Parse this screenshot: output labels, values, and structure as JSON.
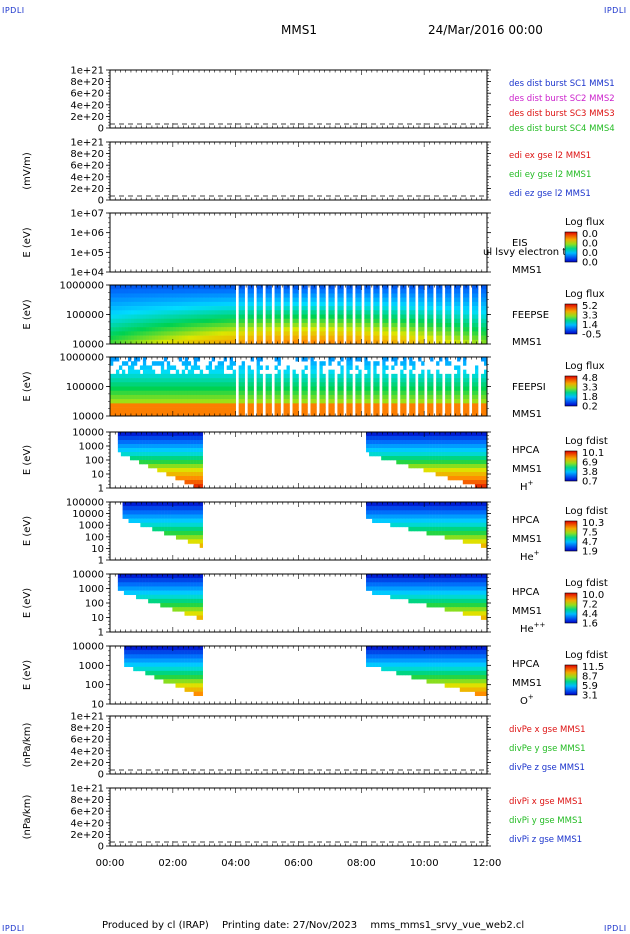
{
  "header": {
    "corner_tl": "IPDLI",
    "corner_tr": "IPDLI",
    "corner_bl": "IPDLI",
    "corner_br": "IPDLI",
    "spacecraft": "MMS1",
    "datetime": "24/Mar/2016 00:00"
  },
  "footer": {
    "produced_by": "Produced by cl (IRAP)",
    "printing_date": "Printing date: 27/Nov/2023",
    "script_name": "mms_mms1_srvy_vue_web2.cl"
  },
  "colors": {
    "blue": "#1a33cc",
    "magenta": "#cc22cc",
    "red": "#dd1111",
    "green": "#22bb22"
  },
  "chart_data": [
    {
      "type": "line",
      "id": "des",
      "ylabel": "",
      "yticks": [
        "1e+21",
        "8e+20",
        "6e+20",
        "4e+20",
        "2e+20",
        "0"
      ],
      "ylim": [
        0,
        1e+21
      ],
      "legend": [
        {
          "label": "des dist burst SC1 MMS1",
          "color": "#1a33cc"
        },
        {
          "label": "des dist burst SC2 MMS2",
          "color": "#cc22cc"
        },
        {
          "label": "des dist burst SC3 MMS3",
          "color": "#dd1111"
        },
        {
          "label": "des dist burst SC4 MMS4",
          "color": "#22bb22"
        }
      ],
      "series": [],
      "zero_line": "dashed"
    },
    {
      "type": "line",
      "id": "edi",
      "ylabel": "(mV/m)",
      "yticks": [
        "1e+21",
        "8e+20",
        "6e+20",
        "4e+20",
        "2e+20",
        "0"
      ],
      "ylim": [
        0,
        1e+21
      ],
      "legend": [
        {
          "label": "edi ex gse l2 MMS1",
          "color": "#dd1111"
        },
        {
          "label": "edi ey gse l2 MMS1",
          "color": "#22bb22"
        },
        {
          "label": "edi ez gse l2 MMS1",
          "color": "#1a33cc"
        }
      ],
      "series": [],
      "zero_line": "dashed"
    },
    {
      "type": "heatmap",
      "id": "eis",
      "ylabel": "E (eV)",
      "yticks": [
        "1e+07",
        "1e+06",
        "1e+05",
        "1e+04"
      ],
      "ylim": [
        10000,
        10000000
      ],
      "scale": "log",
      "labels": [
        "EIS",
        "MMS1"
      ],
      "overlay_text": "ul lsvy electron to",
      "colorbar": {
        "title": "Log flux",
        "ticks": [
          "0.0",
          "0.0",
          "0.0",
          "0.0"
        ]
      },
      "coverage": []
    },
    {
      "type": "heatmap",
      "id": "feepse",
      "ylabel": "E (eV)",
      "yticks": [
        "1000000",
        "100000",
        "10000"
      ],
      "ylim": [
        10000,
        1000000
      ],
      "scale": "log",
      "labels": [
        "FEEPSE",
        "MMS1"
      ],
      "colorbar": {
        "title": "Log flux",
        "ticks": [
          "5.2",
          "3.3",
          "1.4",
          "-0.5"
        ]
      },
      "coverage": [
        [
          0.0,
          12.0
        ]
      ]
    },
    {
      "type": "heatmap",
      "id": "feepsi",
      "ylabel": "E (eV)",
      "yticks": [
        "1000000",
        "100000",
        "10000"
      ],
      "ylim": [
        10000,
        1000000
      ],
      "scale": "log",
      "labels": [
        "FEEPSI",
        "MMS1"
      ],
      "colorbar": {
        "title": "Log flux",
        "ticks": [
          "4.8",
          "3.3",
          "1.8",
          "0.2"
        ]
      },
      "coverage": [
        [
          0.0,
          12.0
        ]
      ]
    },
    {
      "type": "heatmap",
      "id": "hpca-h",
      "ylabel": "E (eV)",
      "yticks": [
        "10000",
        "1000",
        "100",
        "10",
        "1"
      ],
      "ylim": [
        1,
        40000
      ],
      "scale": "log",
      "labels": [
        "HPCA",
        "MMS1"
      ],
      "species": "H",
      "species_sup": "+",
      "colorbar": {
        "title": "Log fdist",
        "ticks": [
          "10.1",
          "6.9",
          "3.8",
          "0.7"
        ]
      },
      "coverage": [
        [
          0.25,
          2.95
        ],
        [
          8.15,
          12.0
        ]
      ]
    },
    {
      "type": "heatmap",
      "id": "hpca-he",
      "ylabel": "E (eV)",
      "yticks": [
        "100000",
        "10000",
        "1000",
        "100",
        "10",
        "1"
      ],
      "ylim": [
        1,
        100000
      ],
      "scale": "log",
      "labels": [
        "HPCA",
        "MMS1"
      ],
      "species": "He",
      "species_sup": "+",
      "colorbar": {
        "title": "Log fdist",
        "ticks": [
          "10.3",
          "7.5",
          "4.7",
          "1.9"
        ]
      },
      "coverage": [
        [
          0.4,
          2.95
        ],
        [
          8.15,
          12.0
        ]
      ]
    },
    {
      "type": "heatmap",
      "id": "hpca-he2",
      "ylabel": "E (eV)",
      "yticks": [
        "10000",
        "1000",
        "100",
        "10",
        "1"
      ],
      "ylim": [
        1,
        40000
      ],
      "scale": "log",
      "labels": [
        "HPCA",
        "MMS1"
      ],
      "species": "He",
      "species_sup": "++",
      "colorbar": {
        "title": "Log fdist",
        "ticks": [
          "10.0",
          "7.2",
          "4.4",
          "1.6"
        ]
      },
      "coverage": [
        [
          0.25,
          2.95
        ],
        [
          8.15,
          12.0
        ]
      ]
    },
    {
      "type": "heatmap",
      "id": "hpca-o",
      "ylabel": "E (eV)",
      "yticks": [
        "10000",
        "1000",
        "100",
        "10"
      ],
      "ylim": [
        3,
        40000
      ],
      "scale": "log",
      "labels": [
        "HPCA",
        "MMS1"
      ],
      "species": "O",
      "species_sup": "+",
      "colorbar": {
        "title": "Log fdist",
        "ticks": [
          "11.5",
          "8.7",
          "5.9",
          "3.1"
        ]
      },
      "coverage": [
        [
          0.45,
          2.95
        ],
        [
          8.15,
          12.0
        ]
      ]
    },
    {
      "type": "line",
      "id": "divpe",
      "ylabel": "(nPa/km)",
      "yticks": [
        "1e+21",
        "8e+20",
        "6e+20",
        "4e+20",
        "2e+20",
        "0"
      ],
      "ylim": [
        0,
        1e+21
      ],
      "legend": [
        {
          "label": "divPe x gse MMS1",
          "color": "#dd1111"
        },
        {
          "label": "divPe y gse MMS1",
          "color": "#22bb22"
        },
        {
          "label": "divPe z gse MMS1",
          "color": "#1a33cc"
        }
      ],
      "series": [],
      "zero_line": "dashed"
    },
    {
      "type": "line",
      "id": "divpi",
      "ylabel": "(nPa/km)",
      "yticks": [
        "1e+21",
        "8e+20",
        "6e+20",
        "4e+20",
        "2e+20",
        "0"
      ],
      "ylim": [
        0,
        1e+21
      ],
      "legend": [
        {
          "label": "divPi x gse MMS1",
          "color": "#dd1111"
        },
        {
          "label": "divPi y gse MMS1",
          "color": "#22bb22"
        },
        {
          "label": "divPi z gse MMS1",
          "color": "#1a33cc"
        }
      ],
      "series": [],
      "zero_line": "dashed"
    }
  ],
  "xaxis": {
    "ticks": [
      "00:00",
      "02:00",
      "04:00",
      "06:00",
      "08:00",
      "10:00",
      "12:00"
    ],
    "range_hours": [
      0,
      12
    ]
  }
}
